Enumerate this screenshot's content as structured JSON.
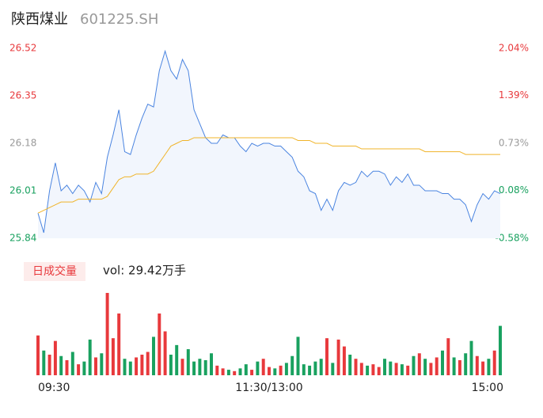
{
  "chart_data": {
    "type": "intraday",
    "title": "陕西煤业",
    "subtitle": "601225.SH",
    "x": [
      0,
      3,
      6,
      9,
      12,
      15,
      18,
      21,
      24,
      27,
      30,
      33,
      36,
      39,
      42,
      45,
      48,
      51,
      54,
      57,
      60,
      63,
      66,
      69,
      72,
      75,
      78,
      81,
      84,
      87,
      90,
      93,
      96,
      99,
      102,
      105,
      108,
      111,
      114,
      117,
      120,
      123,
      126,
      129,
      132,
      135,
      138,
      141,
      144,
      147,
      150,
      153,
      156,
      159,
      162,
      165,
      168,
      171,
      174,
      177,
      180,
      183,
      186,
      189,
      192,
      195,
      198,
      201,
      204,
      207,
      210,
      213,
      216,
      219,
      222,
      225,
      228,
      231,
      234,
      237,
      240
    ],
    "xlim": [
      0,
      240
    ],
    "xticks": [
      {
        "value": 0,
        "label": "09:30"
      },
      {
        "value": 120,
        "label": "11:30/13:00"
      },
      {
        "value": 240,
        "label": "15:00"
      }
    ],
    "series": [
      {
        "name": "price",
        "color": "#4a84e0",
        "values": [
          25.93,
          25.86,
          26.01,
          26.11,
          26.01,
          26.03,
          26.0,
          26.03,
          26.01,
          25.97,
          26.04,
          26.0,
          26.13,
          26.21,
          26.3,
          26.15,
          26.14,
          26.21,
          26.27,
          26.32,
          26.31,
          26.44,
          26.51,
          26.44,
          26.41,
          26.48,
          26.44,
          26.3,
          26.25,
          26.2,
          26.18,
          26.18,
          26.21,
          26.2,
          26.2,
          26.17,
          26.15,
          26.18,
          26.17,
          26.18,
          26.18,
          26.17,
          26.17,
          26.15,
          26.13,
          26.08,
          26.06,
          26.01,
          26.0,
          25.94,
          25.98,
          25.94,
          26.01,
          26.04,
          26.03,
          26.04,
          26.08,
          26.06,
          26.08,
          26.08,
          26.07,
          26.03,
          26.06,
          26.04,
          26.07,
          26.03,
          26.03,
          26.01,
          26.01,
          26.01,
          26.0,
          26.0,
          25.98,
          25.98,
          25.96,
          25.9,
          25.96,
          26.0,
          25.98,
          26.01,
          26.0
        ]
      },
      {
        "name": "average",
        "color": "#f0b42a",
        "values": [
          25.93,
          25.94,
          25.95,
          25.96,
          25.97,
          25.97,
          25.97,
          25.98,
          25.98,
          25.98,
          25.98,
          25.98,
          25.99,
          26.02,
          26.05,
          26.06,
          26.06,
          26.07,
          26.07,
          26.07,
          26.08,
          26.11,
          26.14,
          26.17,
          26.18,
          26.19,
          26.19,
          26.2,
          26.2,
          26.2,
          26.2,
          26.2,
          26.2,
          26.2,
          26.2,
          26.2,
          26.2,
          26.2,
          26.2,
          26.2,
          26.2,
          26.2,
          26.2,
          26.2,
          26.2,
          26.19,
          26.19,
          26.19,
          26.18,
          26.18,
          26.18,
          26.17,
          26.17,
          26.17,
          26.17,
          26.17,
          26.16,
          26.16,
          26.16,
          26.16,
          26.16,
          26.16,
          26.16,
          26.16,
          26.16,
          26.16,
          26.16,
          26.15,
          26.15,
          26.15,
          26.15,
          26.15,
          26.15,
          26.15,
          26.14,
          26.14,
          26.14,
          26.14,
          26.14,
          26.14,
          26.14
        ]
      }
    ],
    "area_color": "#f2f6fd",
    "ylim": [
      25.84,
      26.52
    ],
    "yticks": [
      26.52,
      26.35,
      26.18,
      26.01,
      25.84
    ],
    "y2lim": [
      -0.58,
      2.04
    ],
    "y2ticks": [
      {
        "value": 2.04,
        "label": "2.04%"
      },
      {
        "value": 1.39,
        "label": "1.39%"
      },
      {
        "value": 0.73,
        "label": "0.73%"
      },
      {
        "value": 0.08,
        "label": "0.08%"
      },
      {
        "value": -0.58,
        "label": "-0.58%"
      }
    ],
    "ytick_colors": [
      "#e8393c",
      "#e8393c",
      "#999999",
      "#19a15f",
      "#19a15f"
    ],
    "volume": {
      "button": "日成交量",
      "summary": "vol: 29.42万手",
      "ylim": [
        0,
        6000
      ],
      "up_color": "#e8393c",
      "down_color": "#19a15f",
      "values": [
        2900,
        1800,
        1500,
        2500,
        1400,
        1100,
        1700,
        800,
        1000,
        2600,
        1300,
        1600,
        6000,
        2700,
        4500,
        1200,
        1000,
        1300,
        1500,
        1700,
        2800,
        4500,
        3200,
        1500,
        2200,
        1200,
        1900,
        1000,
        1200,
        1100,
        1600,
        700,
        500,
        400,
        300,
        500,
        800,
        400,
        1000,
        1200,
        600,
        500,
        700,
        900,
        1400,
        2800,
        800,
        700,
        1000,
        1200,
        2700,
        900,
        2600,
        2100,
        1500,
        1200,
        900,
        700,
        800,
        600,
        1200,
        1000,
        900,
        800,
        700,
        1400,
        1600,
        1200,
        900,
        1300,
        1800,
        2700,
        1300,
        1100,
        1600,
        2500,
        1400,
        1000,
        1200,
        1800,
        3600
      ]
    }
  }
}
